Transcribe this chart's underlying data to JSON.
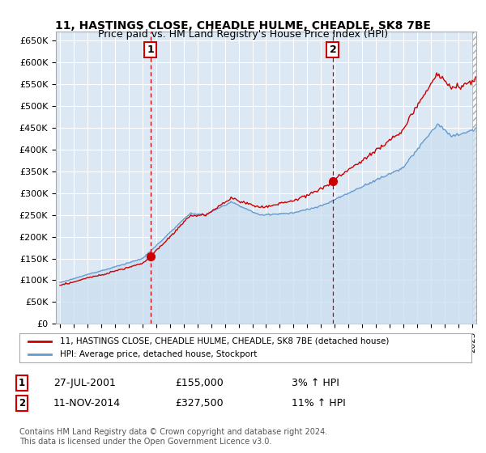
{
  "title": "11, HASTINGS CLOSE, CHEADLE HULME, CHEADLE, SK8 7BE",
  "subtitle": "Price paid vs. HM Land Registry's House Price Index (HPI)",
  "ylabel_ticks": [
    "£0",
    "£50K",
    "£100K",
    "£150K",
    "£200K",
    "£250K",
    "£300K",
    "£350K",
    "£400K",
    "£450K",
    "£500K",
    "£550K",
    "£600K",
    "£650K"
  ],
  "ytick_values": [
    0,
    50000,
    100000,
    150000,
    200000,
    250000,
    300000,
    350000,
    400000,
    450000,
    500000,
    550000,
    600000,
    650000
  ],
  "ylim": [
    0,
    670000
  ],
  "xlim_start": 1994.7,
  "xlim_end": 2025.3,
  "background_color": "#dce9f5",
  "grid_color": "#ffffff",
  "transaction1": {
    "date": 2001.57,
    "price": 155000,
    "label": "1",
    "pct": "3%",
    "date_str": "27-JUL-2001"
  },
  "transaction2": {
    "date": 2014.86,
    "price": 327500,
    "label": "2",
    "pct": "11%",
    "date_str": "11-NOV-2014"
  },
  "legend_line1": "11, HASTINGS CLOSE, CHEADLE HULME, CHEADLE, SK8 7BE (detached house)",
  "legend_line2": "HPI: Average price, detached house, Stockport",
  "footer": "Contains HM Land Registry data © Crown copyright and database right 2024.\nThis data is licensed under the Open Government Licence v3.0.",
  "line_color_red": "#cc0000",
  "line_color_blue": "#6699cc",
  "fill_color_blue": "#cce0f0",
  "vline_color": "#cc0000",
  "marker_color_red": "#cc0000",
  "annotation_box_color": "#cc0000",
  "hatch_color": "#aaaaaa"
}
